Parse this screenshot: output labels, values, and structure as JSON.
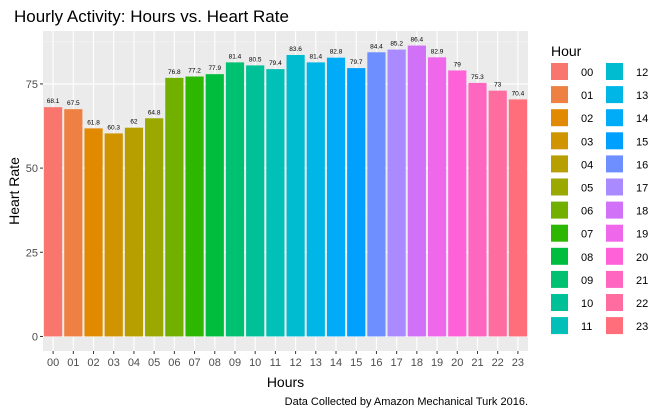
{
  "chart_data": {
    "type": "bar",
    "title": "Hourly Activity: Hours vs. Heart Rate",
    "xlabel": "Hours",
    "ylabel": "Heart Rate",
    "caption": "Data Collected by Amazon Mechanical Turk 2016.",
    "categories": [
      "00",
      "01",
      "02",
      "03",
      "04",
      "05",
      "06",
      "07",
      "08",
      "09",
      "10",
      "11",
      "12",
      "13",
      "14",
      "15",
      "16",
      "17",
      "18",
      "19",
      "20",
      "21",
      "22",
      "23"
    ],
    "values": [
      68.1,
      67.5,
      61.8,
      60.3,
      62,
      64.8,
      76.8,
      77.2,
      77.9,
      81.4,
      80.5,
      79.4,
      83.6,
      81.4,
      82.8,
      79.7,
      84.4,
      85.2,
      86.4,
      82.9,
      79,
      75.3,
      73,
      70.4
    ],
    "value_labels": [
      "68.1",
      "67.5",
      "61.8",
      "60.3",
      "62",
      "64.8",
      "76.8",
      "77.2",
      "77.9",
      "81.4",
      "80.5",
      "79.4",
      "83.6",
      "81.4",
      "82.8",
      "79.7",
      "84.4",
      "85.2",
      "86.4",
      "82.9",
      "79",
      "75.3",
      "73",
      "70.4"
    ],
    "colors": [
      "#F8766D",
      "#EE8043",
      "#E18A00",
      "#CF9400",
      "#B79F00",
      "#9AA800",
      "#72B000",
      "#2EB700",
      "#00BD3E",
      "#00C072",
      "#00C098",
      "#00C0B7",
      "#00BCD1",
      "#00B6E7",
      "#00ACF8",
      "#00A0FF",
      "#6D8FFF",
      "#A98AFF",
      "#D071F7",
      "#EF67EB",
      "#FF61D8",
      "#FF66BF",
      "#FF6C9F",
      "#FF6E7A"
    ],
    "ylim": [
      -4.32,
      90.72
    ],
    "yticks": [
      0,
      25,
      50,
      75
    ],
    "ytick_labels": [
      "0",
      "25",
      "50",
      "75"
    ],
    "grid": true,
    "legend": {
      "title": "Hour",
      "position": "right",
      "columns": 2
    }
  }
}
